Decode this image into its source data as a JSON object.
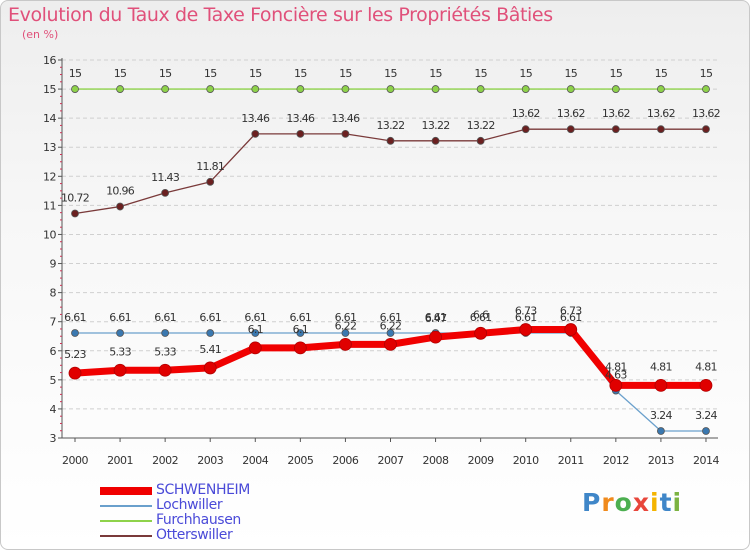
{
  "chart_data": {
    "type": "line",
    "title": "Evolution du Taux de Taxe Foncière sur les Propriétés Bâties",
    "unit_label": "(en %)",
    "categories": [
      "2000",
      "2001",
      "2002",
      "2003",
      "2004",
      "2005",
      "2006",
      "2007",
      "2008",
      "2009",
      "2010",
      "2011",
      "2012",
      "2013",
      "2014"
    ],
    "ylim": [
      3,
      16
    ],
    "yticks": [
      3,
      4,
      5,
      6,
      7,
      8,
      9,
      10,
      11,
      12,
      13,
      14,
      15,
      16
    ],
    "series": [
      {
        "name": "Furchhausen",
        "color": "#8ed24a",
        "point_color": "#8ed24a",
        "values": [
          15,
          15,
          15,
          15,
          15,
          15,
          15,
          15,
          15,
          15,
          15,
          15,
          15,
          15,
          15
        ],
        "labels": [
          "15",
          "15",
          "15",
          "15",
          "15",
          "15",
          "15",
          "15",
          "15",
          "15",
          "15",
          "15",
          "15",
          "15",
          "15"
        ]
      },
      {
        "name": "Otterswiller",
        "color": "#7a3a3a",
        "point_color": "#6b2020",
        "values": [
          10.72,
          10.96,
          11.43,
          11.81,
          13.46,
          13.46,
          13.46,
          13.22,
          13.22,
          13.22,
          13.62,
          13.62,
          13.62,
          13.62,
          13.62
        ],
        "labels": [
          "10.72",
          "10.96",
          "11.43",
          "11.81",
          "13.46",
          "13.46",
          "13.46",
          "13.22",
          "13.22",
          "13.22",
          "13.62",
          "13.62",
          "13.62",
          "13.62",
          "13.62"
        ]
      },
      {
        "name": "Lochwiller",
        "color": "#6aa0cc",
        "point_color": "#3a78b0",
        "values": [
          6.61,
          6.61,
          6.61,
          6.61,
          6.61,
          6.61,
          6.61,
          6.61,
          6.61,
          6.61,
          6.61,
          6.61,
          4.63,
          3.24,
          3.24
        ],
        "labels": [
          "6.61",
          "6.61",
          "6.61",
          "6.61",
          "6.61",
          "6.61",
          "6.61",
          "6.61",
          "6.61",
          "6.61",
          "6.61",
          "6.61",
          "4.63",
          "3.24",
          "3.24"
        ]
      },
      {
        "name": "SCHWENHEIM",
        "color": "#f00000",
        "point_color": "#e00000",
        "values": [
          5.23,
          5.33,
          5.33,
          5.41,
          6.1,
          6.1,
          6.22,
          6.22,
          6.47,
          6.6,
          6.73,
          6.73,
          4.81,
          4.81,
          4.81
        ],
        "labels": [
          "5.23",
          "5.33",
          "5.33",
          "5.41",
          "6.1",
          "6.1",
          "6.22",
          "6.22",
          "6.47",
          "6.6",
          "6.73",
          "6.73",
          "4.81",
          "4.81",
          "4.81"
        ]
      }
    ],
    "legend_order": [
      "SCHWENHEIM",
      "Lochwiller",
      "Furchhausen",
      "Otterswiller"
    ]
  },
  "logo_text": "Proxiti"
}
